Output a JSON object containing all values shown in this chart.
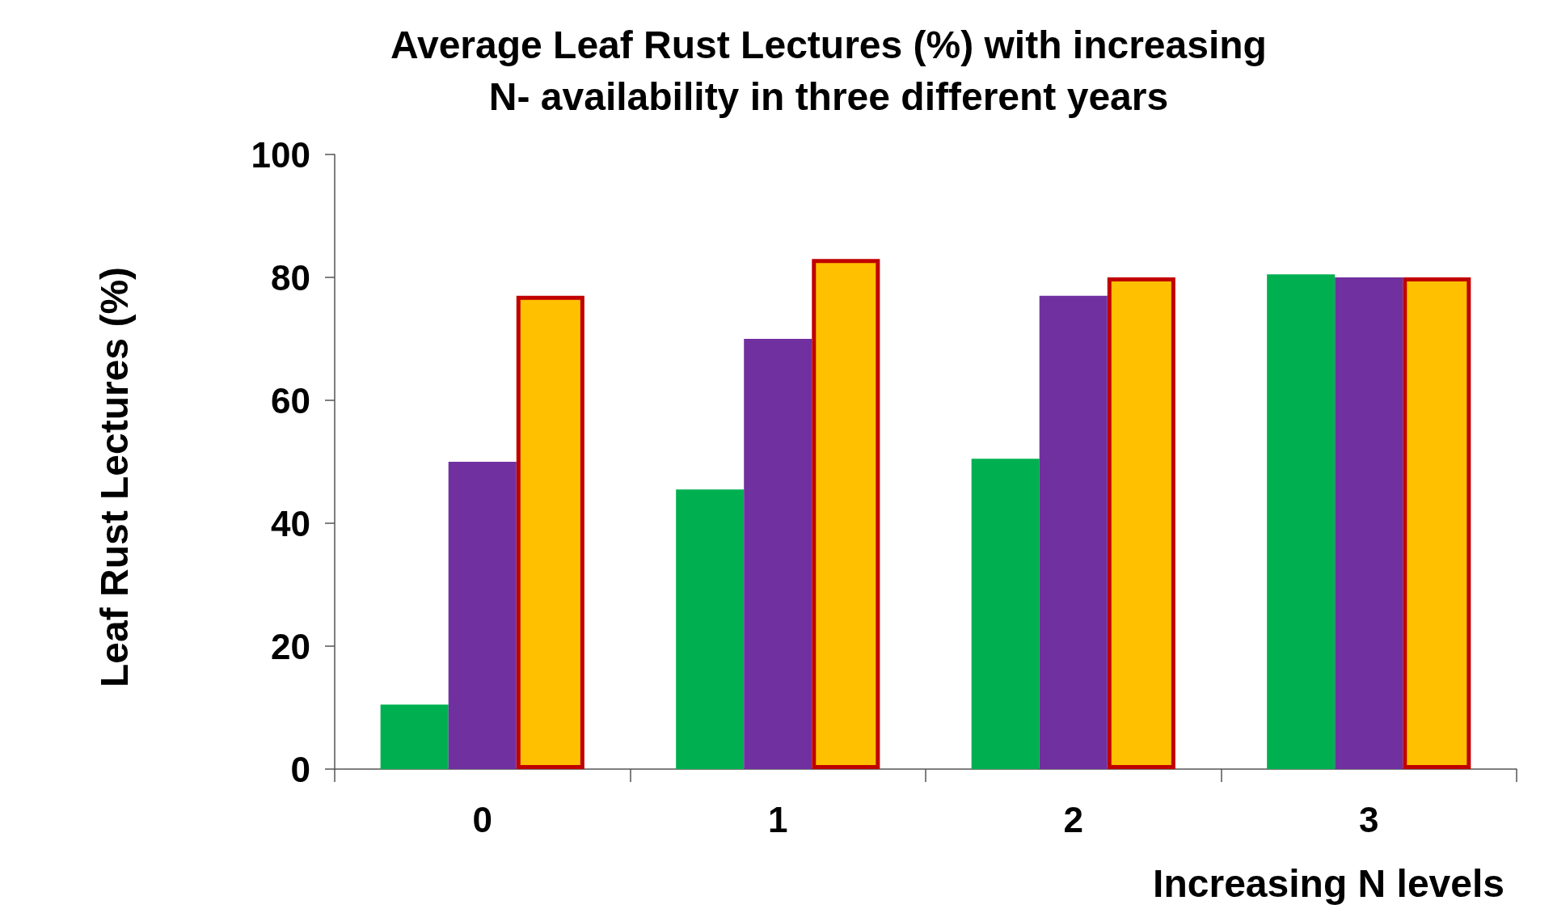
{
  "chart_data": {
    "type": "bar",
    "title": "Average Leaf Rust Lectures (%) with increasing\nN- availability in three different years",
    "xlabel": "Increasing N levels",
    "ylabel": "Leaf Rust Lectures (%)",
    "categories": [
      "0",
      "1",
      "2",
      "3"
    ],
    "series": [
      {
        "color": "#00b050",
        "values": [
          10.5,
          45.5,
          50.5,
          80.5
        ]
      },
      {
        "color": "#7030a0",
        "values": [
          50,
          70,
          77,
          80
        ]
      },
      {
        "color": "#ffc000",
        "values": [
          77,
          83,
          80,
          80
        ]
      }
    ],
    "ylim": [
      0,
      100
    ],
    "yticks": [
      0,
      20,
      40,
      60,
      80,
      100
    ],
    "grid": false
  }
}
